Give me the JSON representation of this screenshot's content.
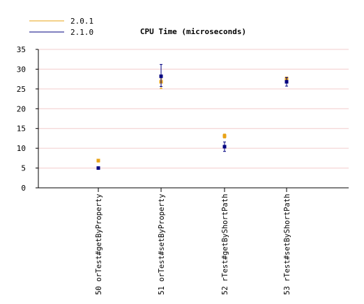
{
  "chart_data": {
    "type": "scatter",
    "title": "CPU Time (microseconds)",
    "xlabel": "",
    "ylabel": "",
    "ylim": [
      0,
      35
    ],
    "yticks": [
      0,
      5,
      10,
      15,
      20,
      25,
      30,
      35
    ],
    "grid": true,
    "legend_position": "top-left",
    "categories": [
      "50 orTest#getByProperty",
      "51 orTest#setByProperty",
      "52 rTest#getByShortPath",
      "53 rTest#setByShortPath"
    ],
    "series": [
      {
        "name": "2.0.1",
        "color": "#e8a317",
        "values": [
          6.9,
          26.8,
          13.1,
          27.6
        ],
        "err_low": [
          6.5,
          25.1,
          12.6,
          27.2
        ],
        "err_high": [
          7.2,
          27.5,
          13.6,
          28.0
        ]
      },
      {
        "name": "2.1.0",
        "color": "#000080",
        "values": [
          5.0,
          28.2,
          10.4,
          26.8
        ],
        "err_low": [
          4.9,
          25.6,
          9.2,
          25.7
        ],
        "err_high": [
          5.1,
          31.2,
          11.6,
          27.9
        ]
      }
    ],
    "grid_color": "#f2cccc"
  }
}
